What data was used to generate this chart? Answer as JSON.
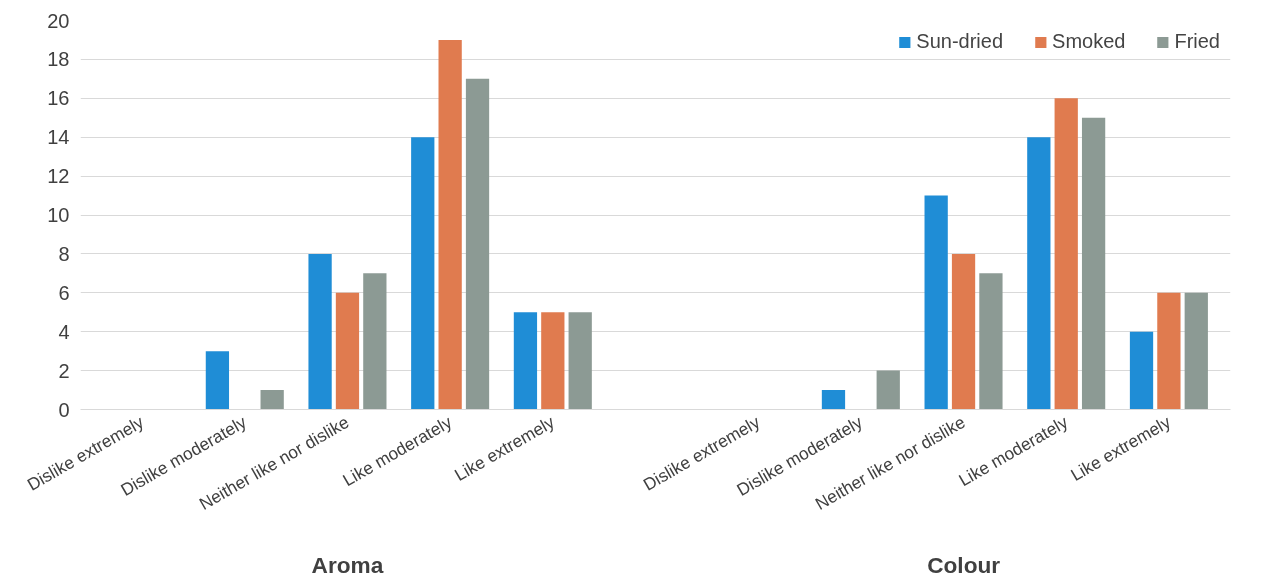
{
  "chart_data": {
    "type": "bar",
    "categories": [
      "Dislike extremely",
      "Dislike moderately",
      "Neither like nor dislike",
      "Like moderately",
      "Like extremely",
      null,
      "Dislike extremely",
      "Dislike moderately",
      "Neither like nor dislike",
      "Like moderately",
      "Like extremely"
    ],
    "series": [
      {
        "name": "Sun-dried",
        "color": "#1f8dd6",
        "values": [
          0,
          3,
          8,
          14,
          5,
          null,
          0,
          1,
          11,
          14,
          4
        ]
      },
      {
        "name": "Smoked",
        "color": "#e07b4f",
        "values": [
          0,
          0,
          6,
          19,
          5,
          null,
          0,
          0,
          8,
          16,
          6
        ]
      },
      {
        "name": "Fried",
        "color": "#8c9a94",
        "values": [
          0,
          1,
          7,
          17,
          5,
          null,
          0,
          2,
          7,
          15,
          6
        ]
      }
    ],
    "annotations": [
      "Aroma",
      "Colour"
    ],
    "ylim": [
      0,
      20
    ],
    "yticks": [
      0,
      2,
      4,
      6,
      8,
      10,
      12,
      14,
      16,
      18,
      20
    ],
    "grid": "y",
    "legend": "top right"
  }
}
